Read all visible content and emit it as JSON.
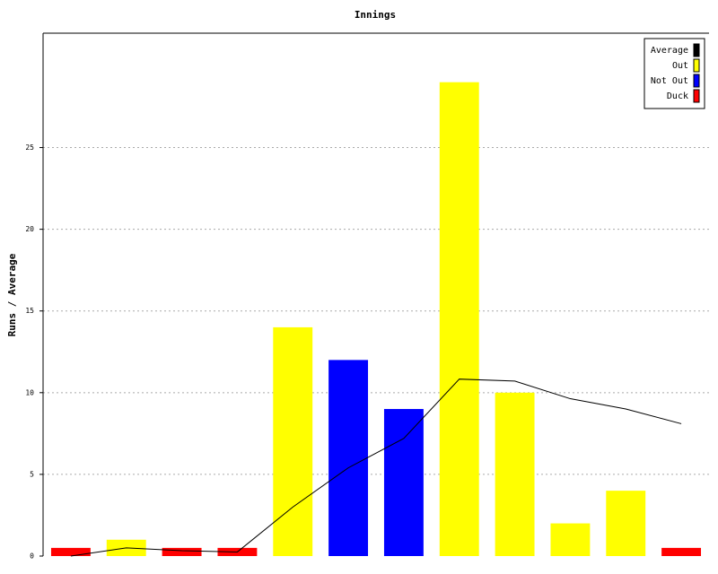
{
  "chart_data": {
    "type": "bar",
    "title": "Innings",
    "y_label": "Runs / Average",
    "series": [
      {
        "name": "Average",
        "type": "line",
        "color": "#000000",
        "values": [
          0,
          0.5,
          0.33,
          0.25,
          3.0,
          5.4,
          7.2,
          10.83,
          10.71,
          9.63,
          9.0,
          8.1
        ]
      },
      {
        "name": "Out",
        "color": "#ffff00",
        "values": [
          null,
          1,
          null,
          null,
          14,
          null,
          null,
          29,
          10,
          2,
          4,
          null
        ]
      },
      {
        "name": "Not Out",
        "color": "#0000ff",
        "values": [
          null,
          null,
          null,
          null,
          null,
          12,
          9,
          null,
          null,
          null,
          null,
          null
        ]
      },
      {
        "name": "Duck",
        "color": "#ff0000",
        "values": [
          0.5,
          null,
          0.5,
          0.5,
          null,
          null,
          null,
          null,
          null,
          null,
          null,
          0.5
        ]
      }
    ],
    "ylim": [
      0,
      32
    ],
    "yticks": [
      0,
      5,
      10,
      15,
      20,
      25
    ],
    "grid": true,
    "legend": "top-right"
  }
}
